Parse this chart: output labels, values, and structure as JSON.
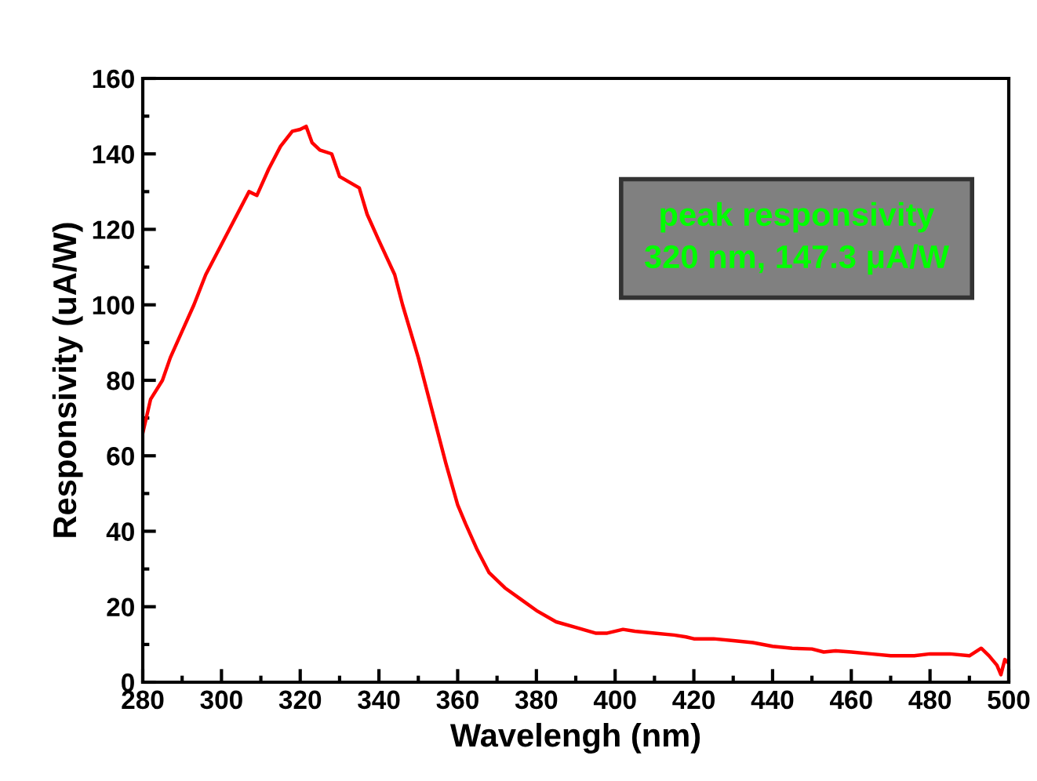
{
  "chart_data": {
    "type": "line",
    "xlabel": "Wavelengh (nm)",
    "ylabel": "Responsivity (uA/W)",
    "annotations": [
      "peak responsivity\n320 nm, 147.3 μA/W"
    ],
    "series": [
      {
        "color": "#ff0000",
        "x": [
          280,
          282,
          285,
          287,
          290,
          293,
          296,
          300,
          302,
          305,
          307,
          309,
          312,
          315,
          318,
          320,
          321.5,
          323,
          325,
          328,
          330,
          335,
          337,
          340,
          344,
          346,
          350,
          353,
          357,
          360,
          362,
          365,
          368,
          372,
          376,
          380,
          385,
          390,
          395,
          398,
          402,
          405,
          410,
          415,
          418,
          420,
          425,
          430,
          435,
          440,
          445,
          450,
          453,
          456,
          460,
          465,
          470,
          476,
          480,
          485,
          490,
          493,
          495,
          497,
          498,
          499,
          500
        ],
        "values": [
          66,
          75,
          80,
          86,
          93,
          100,
          108,
          116,
          120,
          126,
          130,
          129,
          136,
          142,
          146,
          146.5,
          147.3,
          143,
          141,
          140,
          134,
          131,
          124,
          117,
          108,
          100,
          86,
          74,
          58,
          47,
          42,
          35,
          29,
          25,
          22,
          19,
          16,
          14.5,
          13,
          13,
          14,
          13.5,
          13,
          12.5,
          12,
          11.5,
          11.5,
          11,
          10.5,
          9.5,
          9,
          8.8,
          8,
          8.3,
          8,
          7.5,
          7,
          7,
          7.5,
          7.5,
          7,
          9,
          7,
          4.5,
          2,
          6,
          5
        ]
      }
    ],
    "xlim": [
      280,
      500
    ],
    "ylim": [
      0,
      160
    ],
    "xticks": [
      280,
      300,
      320,
      340,
      360,
      380,
      400,
      420,
      440,
      460,
      480,
      500
    ],
    "yticks": [
      0,
      20,
      40,
      60,
      80,
      100,
      120,
      140,
      160
    ],
    "grid": false,
    "legend": false,
    "marker": "none",
    "line_style": "solid"
  }
}
